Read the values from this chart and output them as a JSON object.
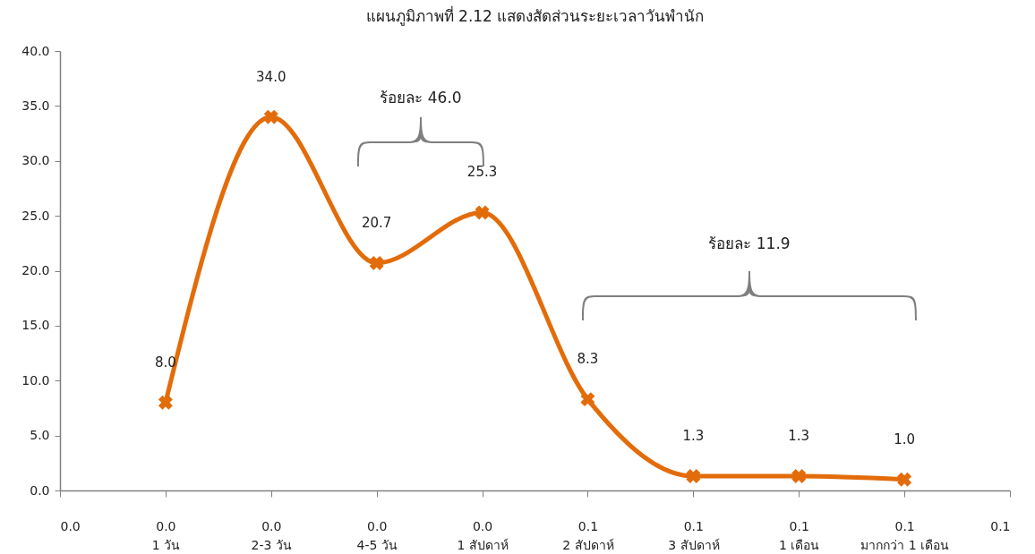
{
  "chart_data": {
    "type": "line",
    "title": "แผนภูมิภาพที่ 2.12  แสดงสัดส่วนระยะเวลาวันพำนัก",
    "x": [
      0.01,
      0.02,
      0.03,
      0.04,
      0.05,
      0.06,
      0.07,
      0.08
    ],
    "values": [
      8.0,
      34.0,
      20.7,
      25.3,
      8.3,
      1.3,
      1.3,
      1.0
    ],
    "color": "#e36c0a",
    "marker": "cross",
    "value_labels": [
      "8.0",
      "34.0",
      "20.7",
      "25.3",
      "8.3",
      "1.3",
      "1.3",
      "1.0"
    ],
    "xlim": [
      0,
      0.09
    ],
    "xticks": [
      {
        "value": 0,
        "label": "0.0"
      },
      {
        "value": 0.01,
        "label": "0.0\n1 วัน"
      },
      {
        "value": 0.02,
        "label": "0.0\n2-3 วัน"
      },
      {
        "value": 0.03,
        "label": "0.0\n4-5 วัน"
      },
      {
        "value": 0.04,
        "label": "0.0\n1 สัปดาห์"
      },
      {
        "value": 0.05,
        "label": "0.1\n2 สัปดาห์"
      },
      {
        "value": 0.06,
        "label": "0.1\n3 สัปดาห์"
      },
      {
        "value": 0.07,
        "label": "0.1\n1 เดือน"
      },
      {
        "value": 0.08,
        "label": "0.1\nมากกว่า 1 เดือน"
      },
      {
        "value": 0.09,
        "label": "0.1"
      }
    ],
    "ylim": [
      0,
      40
    ],
    "yticks": [
      {
        "value": 0,
        "label": "0.0"
      },
      {
        "value": 5,
        "label": "5.0"
      },
      {
        "value": 10,
        "label": "10.0"
      },
      {
        "value": 15,
        "label": "15.0"
      },
      {
        "value": 20,
        "label": "20.0"
      },
      {
        "value": 25,
        "label": "25.0"
      },
      {
        "value": 30,
        "label": "30.0"
      },
      {
        "value": 35,
        "label": "35.0"
      },
      {
        "value": 40,
        "label": "40.0"
      }
    ],
    "annotations": [
      "ร้อยละ 46.0",
      "ร้อยละ 11.9"
    ]
  }
}
